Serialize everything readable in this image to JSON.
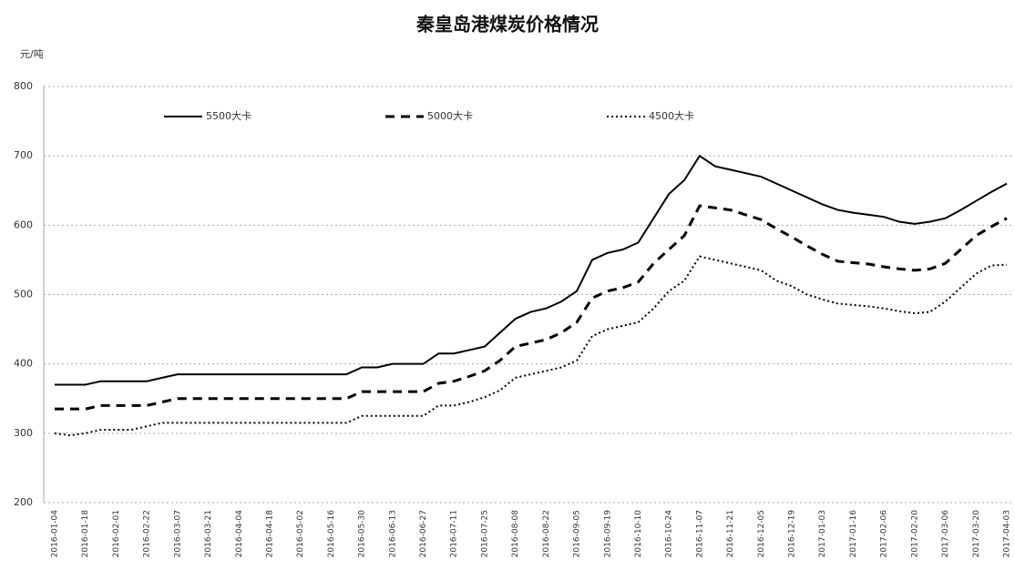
{
  "chart_data": {
    "type": "line",
    "title": "秦皇岛港煤炭价格情况",
    "y_label": "元/吨",
    "categories": [
      "2016-01-04",
      null,
      "2016-01-18",
      null,
      "2016-02-01",
      null,
      "2016-02-22",
      null,
      "2016-03-07",
      null,
      "2016-03-21",
      null,
      "2016-04-04",
      null,
      "2016-04-18",
      null,
      "2016-05-02",
      null,
      "2016-05-16",
      null,
      "2016-05-30",
      null,
      "2016-06-13",
      null,
      "2016-06-27",
      null,
      "2016-07-11",
      null,
      "2016-07-25",
      null,
      "2016-08-08",
      null,
      "2016-08-22",
      null,
      "2016-09-05",
      null,
      "2016-09-19",
      null,
      "2016-10-10",
      null,
      "2016-10-24",
      null,
      "2016-11-07",
      null,
      "2016-11-21",
      null,
      "2016-12-05",
      null,
      "2016-12-19",
      null,
      "2017-01-03",
      null,
      "2017-01-16",
      null,
      "2017-02-06",
      null,
      "2017-02-20",
      null,
      "2017-03-06",
      null,
      "2017-03-20",
      null,
      "2017-04-03"
    ],
    "series": [
      {
        "name": "5500大卡",
        "color": "#000000",
        "style": "solid",
        "values": [
          370,
          370,
          370,
          375,
          375,
          375,
          375,
          380,
          385,
          385,
          385,
          385,
          385,
          385,
          385,
          385,
          385,
          385,
          385,
          385,
          395,
          395,
          400,
          400,
          400,
          415,
          415,
          420,
          425,
          445,
          465,
          475,
          480,
          490,
          505,
          550,
          560,
          565,
          575,
          610,
          645,
          665,
          700,
          685,
          680,
          675,
          670,
          660,
          650,
          640,
          630,
          622,
          618,
          615,
          612,
          605,
          602,
          605,
          610,
          622,
          635,
          648,
          660
        ]
      },
      {
        "name": "5000大卡",
        "color": "#000000",
        "style": "dashed",
        "values": [
          335,
          335,
          335,
          340,
          340,
          340,
          340,
          345,
          350,
          350,
          350,
          350,
          350,
          350,
          350,
          350,
          350,
          350,
          350,
          350,
          360,
          360,
          360,
          360,
          360,
          372,
          375,
          382,
          390,
          405,
          425,
          430,
          435,
          445,
          460,
          495,
          505,
          510,
          518,
          545,
          565,
          585,
          628,
          625,
          622,
          615,
          608,
          595,
          583,
          570,
          558,
          548,
          546,
          544,
          540,
          537,
          535,
          537,
          545,
          565,
          585,
          598,
          610
        ]
      },
      {
        "name": "4500大卡",
        "color": "#000000",
        "style": "dotted",
        "values": [
          300,
          297,
          300,
          305,
          305,
          305,
          310,
          315,
          315,
          315,
          315,
          315,
          315,
          315,
          315,
          315,
          315,
          315,
          315,
          315,
          325,
          325,
          325,
          325,
          325,
          340,
          340,
          345,
          352,
          362,
          380,
          385,
          390,
          395,
          405,
          440,
          450,
          455,
          460,
          480,
          505,
          520,
          555,
          550,
          545,
          540,
          535,
          520,
          512,
          500,
          493,
          487,
          485,
          483,
          480,
          476,
          473,
          475,
          490,
          510,
          530,
          542,
          543
        ]
      }
    ],
    "ylim": [
      200,
      800
    ],
    "yticks": [
      200,
      300,
      400,
      500,
      600,
      700,
      800
    ],
    "grid": true,
    "legend": "top"
  }
}
